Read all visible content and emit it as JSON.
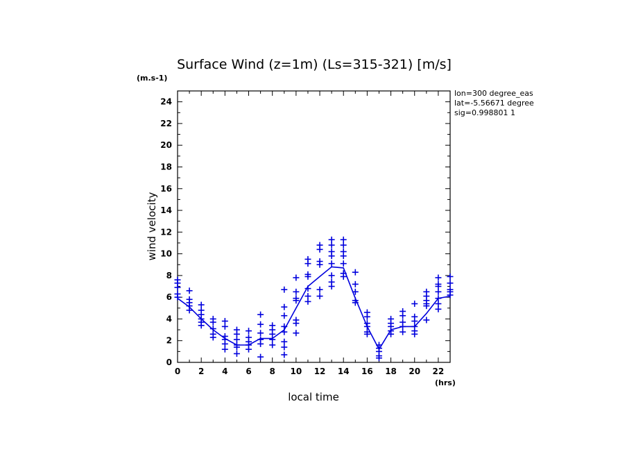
{
  "chart_data": {
    "type": "scatter",
    "title": "Surface Wind (z=1m) (Ls=315-321) [m/s]",
    "ylabel": "wind velocity",
    "xlabel": "local time",
    "y_unit": "(m.s-1)",
    "x_unit": "(hrs)",
    "info": [
      "lon=300 degree_eas",
      "lat=-5.56671 degree",
      "sig=0.998801 1"
    ],
    "xlim": [
      0,
      23
    ],
    "ylim": [
      0,
      25
    ],
    "x_ticks": [
      0,
      2,
      4,
      6,
      8,
      10,
      12,
      14,
      16,
      18,
      20,
      22
    ],
    "y_ticks": [
      0,
      2,
      4,
      6,
      8,
      10,
      12,
      14,
      16,
      18,
      20,
      22,
      24
    ],
    "grid": false,
    "color": "#0000dd",
    "series": [
      {
        "style": "line",
        "x": [
          0,
          1,
          2,
          3,
          4,
          5,
          6,
          7,
          8,
          9,
          10,
          11,
          12,
          13,
          14,
          15,
          16,
          17,
          18,
          19,
          20,
          21,
          22,
          23
        ],
        "y": [
          5.9,
          5.1,
          4.0,
          3.0,
          2.2,
          1.6,
          1.6,
          2.2,
          2.2,
          3.0,
          5.0,
          7.0,
          7.9,
          8.8,
          8.7,
          5.9,
          3.3,
          1.2,
          3.0,
          3.3,
          3.3,
          4.5,
          5.9,
          6.1
        ]
      },
      {
        "style": "markers",
        "marker": "+",
        "points": [
          [
            0,
            7.6
          ],
          [
            0,
            7.3
          ],
          [
            0,
            6.9
          ],
          [
            0,
            6.3
          ],
          [
            0,
            6.0
          ],
          [
            1,
            6.6
          ],
          [
            1,
            5.8
          ],
          [
            1,
            5.5
          ],
          [
            1,
            5.2
          ],
          [
            1,
            4.8
          ],
          [
            2,
            5.3
          ],
          [
            2,
            4.8
          ],
          [
            2,
            4.4
          ],
          [
            2,
            4.0
          ],
          [
            2,
            3.7
          ],
          [
            2,
            3.4
          ],
          [
            3,
            4.0
          ],
          [
            3,
            3.7
          ],
          [
            3,
            3.1
          ],
          [
            3,
            2.6
          ],
          [
            3,
            2.3
          ],
          [
            4,
            3.8
          ],
          [
            4,
            3.3
          ],
          [
            4,
            2.4
          ],
          [
            4,
            2.1
          ],
          [
            4,
            1.7
          ],
          [
            4,
            1.2
          ],
          [
            5,
            3.0
          ],
          [
            5,
            2.6
          ],
          [
            5,
            2.1
          ],
          [
            5,
            1.6
          ],
          [
            5,
            1.4
          ],
          [
            5,
            0.8
          ],
          [
            6,
            2.9
          ],
          [
            6,
            2.3
          ],
          [
            6,
            1.9
          ],
          [
            6,
            1.6
          ],
          [
            6,
            1.2
          ],
          [
            7,
            4.4
          ],
          [
            7,
            3.5
          ],
          [
            7,
            2.7
          ],
          [
            7,
            2.1
          ],
          [
            7,
            1.7
          ],
          [
            7,
            0.5
          ],
          [
            8,
            3.4
          ],
          [
            8,
            3.0
          ],
          [
            8,
            2.6
          ],
          [
            8,
            2.1
          ],
          [
            8,
            1.6
          ],
          [
            9,
            6.7
          ],
          [
            9,
            5.1
          ],
          [
            9,
            4.3
          ],
          [
            9,
            3.3
          ],
          [
            9,
            2.8
          ],
          [
            9,
            1.9
          ],
          [
            9,
            1.4
          ],
          [
            9,
            0.7
          ],
          [
            10,
            7.8
          ],
          [
            10,
            6.5
          ],
          [
            10,
            5.9
          ],
          [
            10,
            5.7
          ],
          [
            10,
            3.9
          ],
          [
            10,
            3.6
          ],
          [
            10,
            2.7
          ],
          [
            11,
            9.5
          ],
          [
            11,
            9.1
          ],
          [
            11,
            8.1
          ],
          [
            11,
            7.9
          ],
          [
            11,
            6.8
          ],
          [
            11,
            6.1
          ],
          [
            11,
            5.6
          ],
          [
            12,
            10.8
          ],
          [
            12,
            10.4
          ],
          [
            12,
            9.3
          ],
          [
            12,
            9.0
          ],
          [
            12,
            6.7
          ],
          [
            12,
            6.1
          ],
          [
            13,
            11.3
          ],
          [
            13,
            10.8
          ],
          [
            13,
            10.2
          ],
          [
            13,
            9.8
          ],
          [
            13,
            9.1
          ],
          [
            13,
            8.0
          ],
          [
            13,
            7.4
          ],
          [
            13,
            7.0
          ],
          [
            14,
            11.3
          ],
          [
            14,
            10.8
          ],
          [
            14,
            10.2
          ],
          [
            14,
            9.8
          ],
          [
            14,
            9.1
          ],
          [
            14,
            8.2
          ],
          [
            14,
            7.9
          ],
          [
            15,
            8.3
          ],
          [
            15,
            7.2
          ],
          [
            15,
            6.5
          ],
          [
            15,
            5.7
          ],
          [
            15,
            5.5
          ],
          [
            16,
            4.6
          ],
          [
            16,
            4.2
          ],
          [
            16,
            3.6
          ],
          [
            16,
            3.3
          ],
          [
            16,
            2.8
          ],
          [
            16,
            2.6
          ],
          [
            17,
            1.6
          ],
          [
            17,
            1.3
          ],
          [
            17,
            1.0
          ],
          [
            17,
            0.6
          ],
          [
            17,
            0.4
          ],
          [
            18,
            4.0
          ],
          [
            18,
            3.6
          ],
          [
            18,
            3.3
          ],
          [
            18,
            2.9
          ],
          [
            18,
            2.6
          ],
          [
            19,
            4.7
          ],
          [
            19,
            4.3
          ],
          [
            19,
            3.7
          ],
          [
            19,
            3.3
          ],
          [
            19,
            2.8
          ],
          [
            20,
            5.4
          ],
          [
            20,
            4.2
          ],
          [
            20,
            3.8
          ],
          [
            20,
            3.3
          ],
          [
            20,
            2.9
          ],
          [
            20,
            2.6
          ],
          [
            21,
            6.5
          ],
          [
            21,
            6.1
          ],
          [
            21,
            5.7
          ],
          [
            21,
            5.4
          ],
          [
            21,
            5.2
          ],
          [
            21,
            3.9
          ],
          [
            22,
            7.8
          ],
          [
            22,
            7.2
          ],
          [
            22,
            7.0
          ],
          [
            22,
            6.5
          ],
          [
            22,
            5.9
          ],
          [
            22,
            5.4
          ],
          [
            22,
            4.9
          ],
          [
            23,
            7.9
          ],
          [
            23,
            7.3
          ],
          [
            23,
            6.7
          ],
          [
            23,
            6.5
          ],
          [
            23,
            6.2
          ]
        ]
      }
    ]
  }
}
